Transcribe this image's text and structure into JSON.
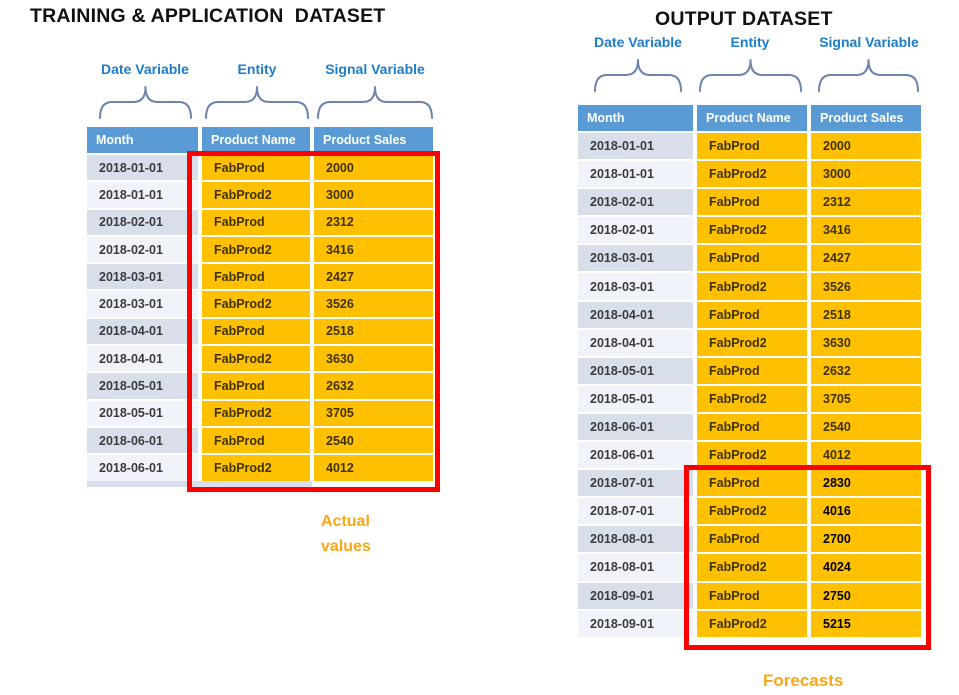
{
  "colors": {
    "header_bg": "#5B9BD5",
    "row_dark": "#D8DFEB",
    "row_light": "#F0F3F9",
    "cell_orange": "#FFC000",
    "highlight_red": "#FF0000",
    "annotation_blue": "#1B7DCB",
    "brace": "#6B84AD",
    "label_orange": "#F8A718",
    "header_text": "#FFFFFF",
    "date_text": "#3B3B3B",
    "orange_text": "#3E3200"
  },
  "left": {
    "title": "TRAINING & APPLICATION  DATASET",
    "annotations": {
      "date": "Date Variable",
      "entity": "Entity",
      "signal": "Signal Variable"
    },
    "columns": [
      "Month",
      "Product Name",
      "Product Sales"
    ],
    "rows": [
      {
        "month": "2018-01-01",
        "product": "FabProd",
        "sales": "2000"
      },
      {
        "month": "2018-01-01",
        "product": "FabProd2",
        "sales": "3000"
      },
      {
        "month": "2018-02-01",
        "product": "FabProd",
        "sales": "2312"
      },
      {
        "month": "2018-02-01",
        "product": "FabProd2",
        "sales": "3416"
      },
      {
        "month": "2018-03-01",
        "product": "FabProd",
        "sales": "2427"
      },
      {
        "month": "2018-03-01",
        "product": "FabProd2",
        "sales": "3526"
      },
      {
        "month": "2018-04-01",
        "product": "FabProd",
        "sales": "2518"
      },
      {
        "month": "2018-04-01",
        "product": "FabProd2",
        "sales": "3630"
      },
      {
        "month": "2018-05-01",
        "product": "FabProd",
        "sales": "2632"
      },
      {
        "month": "2018-05-01",
        "product": "FabProd2",
        "sales": "3705"
      },
      {
        "month": "2018-06-01",
        "product": "FabProd",
        "sales": "2540"
      },
      {
        "month": "2018-06-01",
        "product": "FabProd2",
        "sales": "4012"
      }
    ],
    "highlight_label": "Actual\nvalues"
  },
  "right": {
    "title": "OUTPUT DATASET",
    "annotations": {
      "date": "Date Variable",
      "entity": "Entity",
      "signal": "Signal Variable"
    },
    "columns": [
      "Month",
      "Product Name",
      "Product Sales"
    ],
    "rows": [
      {
        "month": "2018-01-01",
        "product": "FabProd",
        "sales": "2000"
      },
      {
        "month": "2018-01-01",
        "product": "FabProd2",
        "sales": "3000"
      },
      {
        "month": "2018-02-01",
        "product": "FabProd",
        "sales": "2312"
      },
      {
        "month": "2018-02-01",
        "product": "FabProd2",
        "sales": "3416"
      },
      {
        "month": "2018-03-01",
        "product": "FabProd",
        "sales": "2427"
      },
      {
        "month": "2018-03-01",
        "product": "FabProd2",
        "sales": "3526"
      },
      {
        "month": "2018-04-01",
        "product": "FabProd",
        "sales": "2518"
      },
      {
        "month": "2018-04-01",
        "product": "FabProd2",
        "sales": "3630"
      },
      {
        "month": "2018-05-01",
        "product": "FabProd",
        "sales": "2632"
      },
      {
        "month": "2018-05-01",
        "product": "FabProd2",
        "sales": "3705"
      },
      {
        "month": "2018-06-01",
        "product": "FabProd",
        "sales": "2540"
      },
      {
        "month": "2018-06-01",
        "product": "FabProd2",
        "sales": "4012"
      },
      {
        "month": "2018-07-01",
        "product": "FabProd",
        "sales": "2830",
        "forecast": true
      },
      {
        "month": "2018-07-01",
        "product": "FabProd2",
        "sales": "4016",
        "forecast": true
      },
      {
        "month": "2018-08-01",
        "product": "FabProd",
        "sales": "2700",
        "forecast": true
      },
      {
        "month": "2018-08-01",
        "product": "FabProd2",
        "sales": "4024",
        "forecast": true
      },
      {
        "month": "2018-09-01",
        "product": "FabProd",
        "sales": "2750",
        "forecast": true
      },
      {
        "month": "2018-09-01",
        "product": "FabProd2",
        "sales": "5215",
        "forecast": true
      }
    ],
    "highlight_label": "Forecasts"
  }
}
